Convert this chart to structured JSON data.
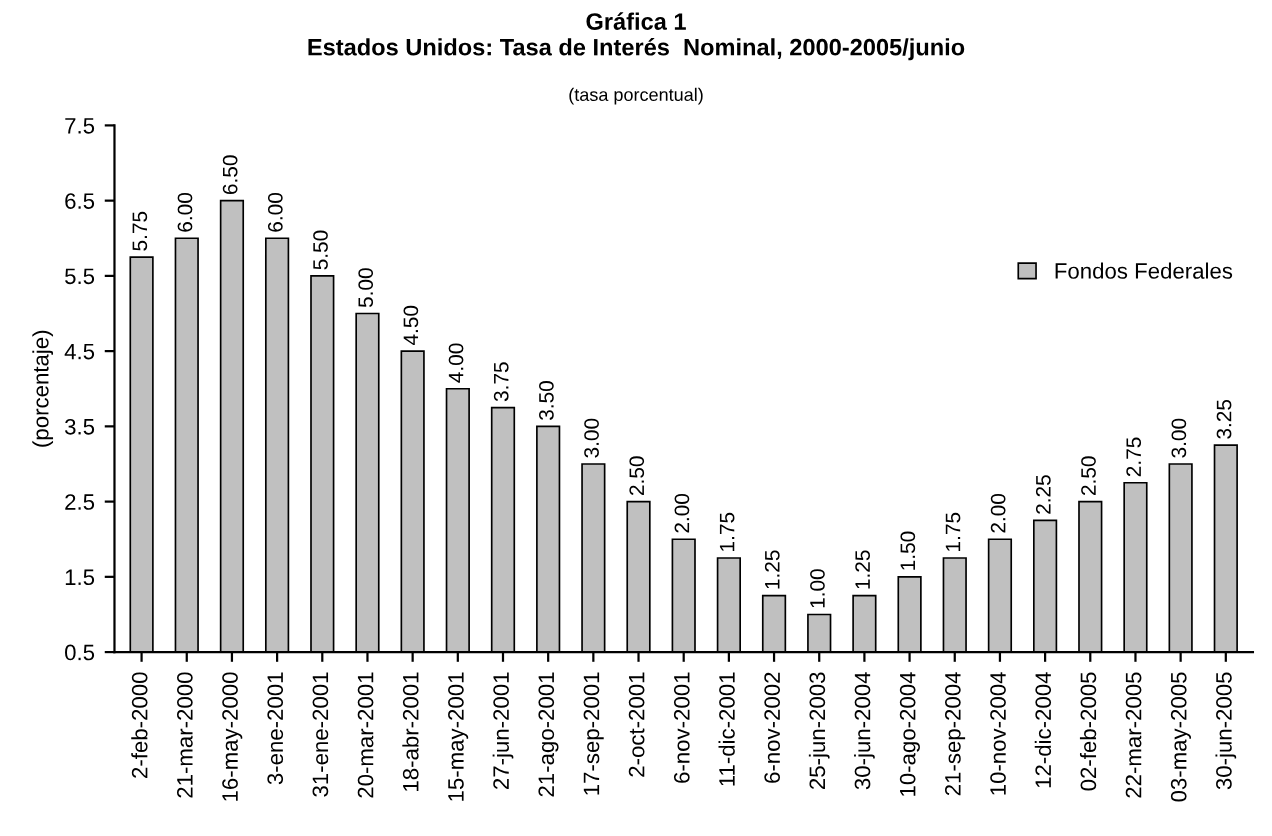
{
  "chart_data": {
    "type": "bar",
    "title": "Gráfica 1\nEstados Unidos: Tasa de Interés  Nominal, 2000-2005/junio",
    "subtitle": "(tasa porcentual)",
    "ylabel": "(porcentaje)",
    "categories": [
      "2-feb-2000",
      "21-mar-2000",
      "16-may-2000",
      "3-ene-2001",
      "31-ene-2001",
      "20-mar-2001",
      "18-abr-2001",
      "15-may-2001",
      "27-jun-2001",
      "21-ago-2001",
      "17-sep-2001",
      "2-oct-2001",
      "6-nov-2001",
      "11-dic-2001",
      "6-nov-2002",
      "25-jun-2003",
      "30-jun-2004",
      "10-ago-2004",
      "21-sep-2004",
      "10-nov-2004",
      "12-dic-2004",
      "02-feb-2005",
      "22-mar-2005",
      "03-may-2005",
      "30-jun-2005"
    ],
    "series": [
      {
        "name": "Fondos Federales",
        "color": "#c0c0c0",
        "values": [
          5.75,
          6.0,
          6.5,
          6.0,
          5.5,
          5.0,
          4.5,
          4.0,
          3.75,
          3.5,
          3.0,
          2.5,
          2.0,
          1.75,
          1.25,
          1.0,
          1.25,
          1.5,
          1.75,
          2.0,
          2.25,
          2.5,
          2.75,
          3.0,
          3.25
        ],
        "value_labels": [
          "5.75",
          "6.00",
          "6.50",
          "6.00",
          "5.50",
          "5.00",
          "4.50",
          "4.00",
          "3.75",
          "3.50",
          "3.00",
          "2.50",
          "2.00",
          "1.75",
          "1.25",
          "1.00",
          "1.25",
          "1.50",
          "1.75",
          "2.00",
          "2.25",
          "2.50",
          "2.75",
          "3.00",
          "3.25"
        ]
      }
    ],
    "ylim": [
      0.5,
      7.5
    ],
    "yticks": [
      0.5,
      1.5,
      2.5,
      3.5,
      4.5,
      5.5,
      6.5,
      7.5
    ],
    "grid": false,
    "legend": "right"
  }
}
